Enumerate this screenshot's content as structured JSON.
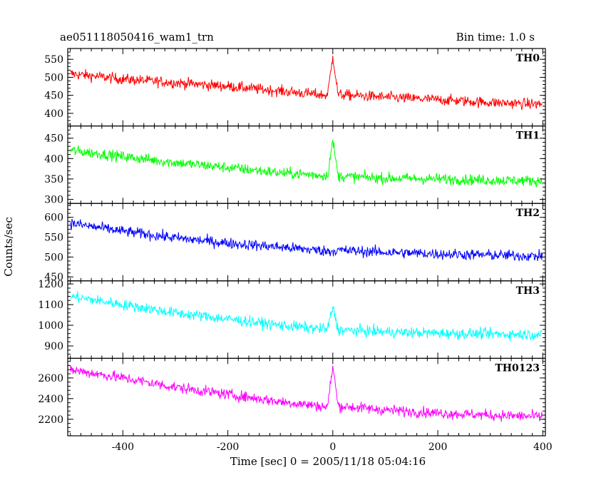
{
  "header": {
    "title": "ae051118050416_wam1_trn",
    "bin_time": "Bin time: 1.0 s"
  },
  "axes": {
    "xlabel": "Time [sec] 0 = 2005/11/18 05:04:16",
    "ylabel": "Counts/sec"
  },
  "chart_data": {
    "type": "line",
    "xlabel": "Time [sec] 0 = 2005/11/18 05:04:16",
    "ylabel": "Counts/sec",
    "xlim": [
      -505,
      405
    ],
    "x_ticks": [
      -400,
      -200,
      0,
      200,
      400
    ],
    "bin_time_s": 1.0,
    "grid": false,
    "panels": [
      {
        "name": "TH0",
        "color": "#ff0000",
        "ylim": [
          365,
          580
        ],
        "y_ticks": [
          400,
          450,
          500,
          550
        ],
        "x": [
          -500,
          -400,
          -300,
          -200,
          -100,
          -10,
          0,
          10,
          100,
          200,
          300,
          400
        ],
        "values": [
          510,
          495,
          485,
          475,
          462,
          450,
          560,
          452,
          445,
          438,
          430,
          425
        ]
      },
      {
        "name": "TH1",
        "color": "#00ff00",
        "ylim": [
          290,
          480
        ],
        "y_ticks": [
          300,
          350,
          400,
          450
        ],
        "x": [
          -500,
          -400,
          -300,
          -200,
          -100,
          -10,
          0,
          10,
          100,
          200,
          300,
          400
        ],
        "values": [
          420,
          405,
          390,
          378,
          365,
          358,
          445,
          357,
          352,
          350,
          347,
          345
        ],
        "y_tick_labels": [
          "300",
          "350",
          "400",
          "450"
        ]
      },
      {
        "name": "TH2",
        "color": "#0000ff",
        "ylim": [
          440,
          635
        ],
        "y_ticks": [
          450,
          500,
          550,
          600
        ],
        "x": [
          -500,
          -400,
          -300,
          -200,
          -100,
          -10,
          0,
          10,
          100,
          200,
          300,
          400
        ],
        "values": [
          585,
          565,
          548,
          535,
          525,
          515,
          515,
          517,
          512,
          508,
          505,
          502
        ]
      },
      {
        "name": "TH3",
        "color": "#00ffff",
        "ylim": [
          840,
          1215
        ],
        "y_ticks": [
          900,
          1000,
          1100,
          1200
        ],
        "x": [
          -500,
          -400,
          -300,
          -200,
          -100,
          -10,
          0,
          10,
          100,
          200,
          300,
          400
        ],
        "values": [
          1140,
          1100,
          1060,
          1030,
          1000,
          980,
          1090,
          978,
          968,
          962,
          958,
          955
        ]
      },
      {
        "name": "TH0123",
        "color": "#ff00ff",
        "ylim": [
          2040,
          2790
        ],
        "y_ticks": [
          2200,
          2400,
          2600
        ],
        "x": [
          -500,
          -400,
          -300,
          -200,
          -100,
          -10,
          0,
          10,
          100,
          200,
          300,
          400
        ],
        "values": [
          2680,
          2600,
          2510,
          2440,
          2370,
          2320,
          2720,
          2330,
          2290,
          2260,
          2240,
          2225
        ]
      }
    ]
  }
}
